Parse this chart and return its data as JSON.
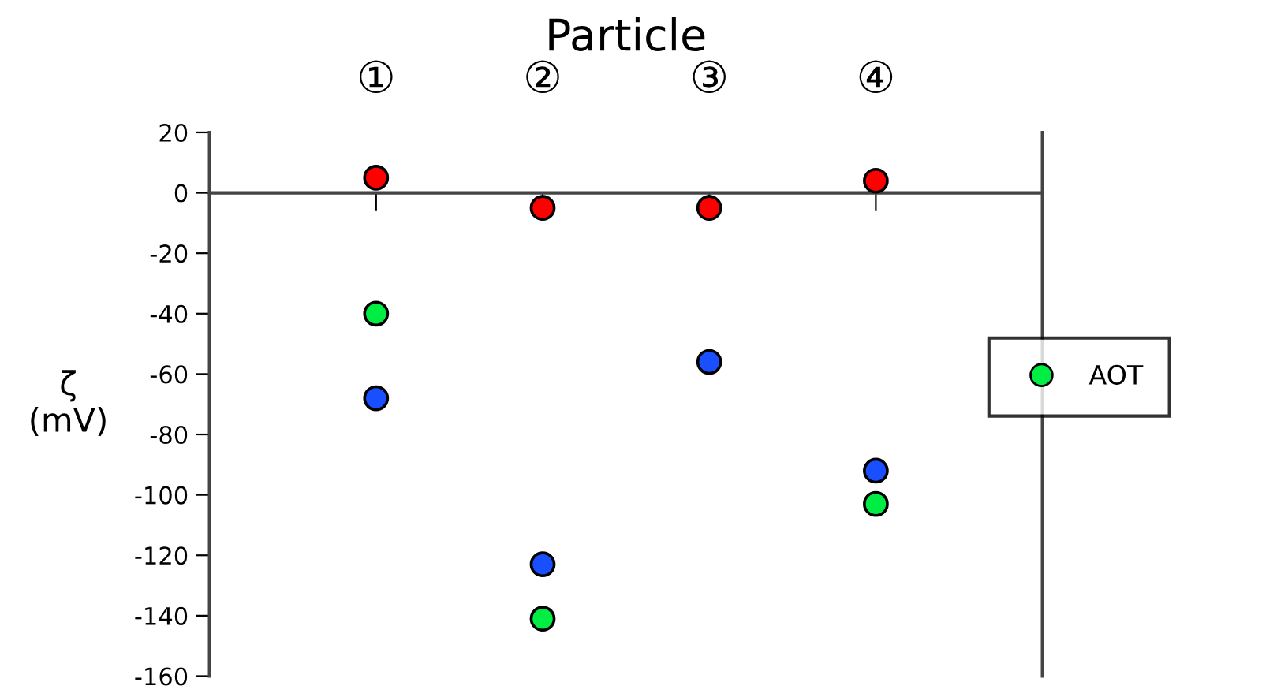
{
  "chart_data": {
    "type": "scatter",
    "xlabel": "Particle",
    "ylabel": "ζ\n(mV)",
    "categories": [
      "①",
      "②",
      "③",
      "④"
    ],
    "series": [
      {
        "color": "#ff0000",
        "values": [
          5,
          -5,
          -5,
          4
        ]
      },
      {
        "name": "AOT",
        "color": "#00ee44",
        "values": [
          -40,
          -141,
          null,
          -103
        ]
      },
      {
        "color": "#1a4fff",
        "values": [
          -68,
          -123,
          -56,
          -92
        ]
      }
    ],
    "ylim": [
      -160,
      20
    ],
    "yticks": [
      -160,
      -140,
      -120,
      -100,
      -80,
      -60,
      -40,
      -20,
      0,
      20
    ],
    "marker": "circle",
    "legend": "right",
    "grid": false
  }
}
